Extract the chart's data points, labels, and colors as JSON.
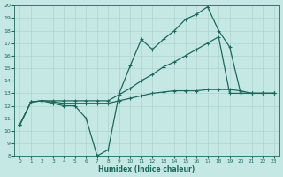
{
  "xlabel": "Humidex (Indice chaleur)",
  "xlim": [
    -0.5,
    23.5
  ],
  "ylim": [
    8,
    20
  ],
  "xticks": [
    0,
    1,
    2,
    3,
    4,
    5,
    6,
    7,
    8,
    9,
    10,
    11,
    12,
    13,
    14,
    15,
    16,
    17,
    18,
    19,
    20,
    21,
    22,
    23
  ],
  "yticks": [
    8,
    9,
    10,
    11,
    12,
    13,
    14,
    15,
    16,
    17,
    18,
    19,
    20
  ],
  "background_color": "#c5e8e4",
  "line_color": "#1a6b5a",
  "grid_color": "#aed4d0",
  "line1_x": [
    0,
    1,
    2,
    3,
    4,
    5,
    6,
    7,
    8,
    9,
    10,
    11,
    12,
    13,
    14,
    15,
    16,
    17,
    18,
    19,
    20,
    21,
    22,
    23
  ],
  "line1_y": [
    10.5,
    12.3,
    12.4,
    12.2,
    12.0,
    12.0,
    11.0,
    8.0,
    8.5,
    13.0,
    15.2,
    17.3,
    16.5,
    17.3,
    18.0,
    18.9,
    19.3,
    19.9,
    18.0,
    16.7,
    13.0,
    13.0,
    13.0,
    13.0
  ],
  "line2_x": [
    0,
    1,
    2,
    3,
    4,
    5,
    6,
    7,
    8,
    9,
    10,
    11,
    12,
    13,
    14,
    15,
    16,
    17,
    18,
    19,
    20,
    21,
    22,
    23
  ],
  "line2_y": [
    10.5,
    12.3,
    12.4,
    12.4,
    12.4,
    12.4,
    12.4,
    12.4,
    12.4,
    12.9,
    13.4,
    14.0,
    14.5,
    15.1,
    15.5,
    16.0,
    16.5,
    17.0,
    17.5,
    13.0,
    13.0,
    13.0,
    13.0,
    13.0
  ],
  "line3_x": [
    0,
    1,
    2,
    3,
    4,
    5,
    6,
    7,
    8,
    9,
    10,
    11,
    12,
    13,
    14,
    15,
    16,
    17,
    18,
    19,
    20,
    21,
    22,
    23
  ],
  "line3_y": [
    10.5,
    12.3,
    12.4,
    12.3,
    12.2,
    12.2,
    12.2,
    12.2,
    12.2,
    12.4,
    12.6,
    12.8,
    13.0,
    13.1,
    13.2,
    13.2,
    13.2,
    13.3,
    13.3,
    13.3,
    13.2,
    13.0,
    13.0,
    13.0
  ]
}
